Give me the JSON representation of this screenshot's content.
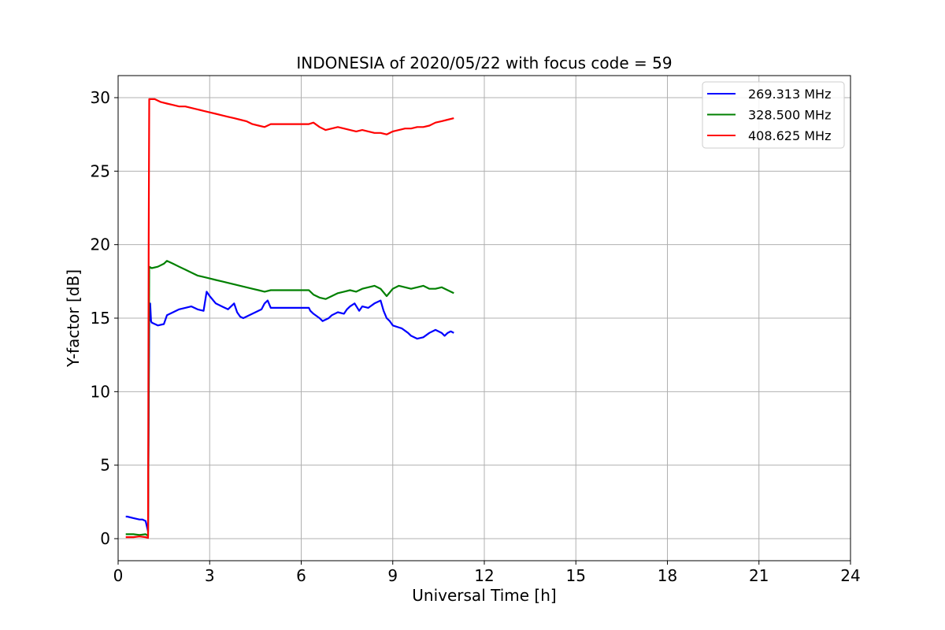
{
  "chart_data": {
    "type": "line",
    "title": "INDONESIA of 2020/05/22 with focus code = 59",
    "xlabel": "Universal Time [h]",
    "ylabel": "Y-factor [dB]",
    "xlim": [
      0,
      24
    ],
    "ylim": [
      -1.5,
      31.5
    ],
    "xticks": [
      0,
      3,
      6,
      9,
      12,
      15,
      18,
      21,
      24
    ],
    "yticks": [
      0,
      5,
      10,
      15,
      20,
      25,
      30
    ],
    "grid": true,
    "legend_position": "top-right",
    "series": [
      {
        "name": "269.313 MHz",
        "color": "#0000ff",
        "x": [
          0.25,
          0.3,
          0.5,
          0.7,
          0.8,
          0.9,
          0.98,
          1.0,
          1.02,
          1.05,
          1.08,
          1.1,
          1.3,
          1.5,
          1.6,
          1.8,
          2.0,
          2.2,
          2.4,
          2.6,
          2.8,
          2.9,
          3.0,
          3.2,
          3.4,
          3.6,
          3.8,
          3.9,
          4.0,
          4.1,
          4.3,
          4.5,
          4.7,
          4.8,
          4.9,
          5.0,
          6.25,
          6.3,
          6.4,
          6.6,
          6.7,
          6.9,
          7.0,
          7.2,
          7.4,
          7.5,
          7.6,
          7.75,
          7.9,
          8.0,
          8.2,
          8.4,
          8.6,
          8.7,
          8.8,
          8.9,
          9.0,
          9.3,
          9.5,
          9.6,
          9.8,
          10.0,
          10.2,
          10.4,
          10.6,
          10.7,
          10.8,
          10.9,
          11.0
        ],
        "y": [
          1.5,
          1.5,
          1.4,
          1.3,
          1.3,
          1.2,
          0.5,
          8.5,
          14.8,
          16.0,
          14.8,
          14.7,
          14.5,
          14.6,
          15.2,
          15.4,
          15.6,
          15.7,
          15.8,
          15.6,
          15.5,
          16.8,
          16.5,
          16.0,
          15.8,
          15.6,
          16.0,
          15.4,
          15.1,
          15.0,
          15.2,
          15.4,
          15.6,
          16.0,
          16.2,
          15.7,
          15.7,
          15.5,
          15.3,
          15.0,
          14.8,
          15.0,
          15.2,
          15.4,
          15.3,
          15.6,
          15.8,
          16.0,
          15.5,
          15.8,
          15.7,
          16.0,
          16.2,
          15.5,
          15.0,
          14.8,
          14.5,
          14.3,
          14.0,
          13.8,
          13.6,
          13.7,
          14.0,
          14.2,
          14.0,
          13.8,
          14.0,
          14.1,
          14.0
        ]
      },
      {
        "name": "328.500 MHz",
        "color": "#008000",
        "x": [
          0.25,
          0.5,
          0.7,
          0.9,
          0.98,
          1.0,
          1.02,
          1.1,
          1.3,
          1.5,
          1.6,
          1.8,
          2.0,
          2.2,
          2.4,
          2.6,
          2.8,
          3.0,
          3.2,
          3.4,
          3.6,
          3.8,
          4.0,
          4.2,
          4.4,
          4.6,
          4.8,
          5.0,
          6.25,
          6.4,
          6.6,
          6.8,
          7.0,
          7.2,
          7.4,
          7.6,
          7.8,
          8.0,
          8.2,
          8.4,
          8.6,
          8.8,
          9.0,
          9.2,
          9.4,
          9.6,
          9.8,
          10.0,
          10.2,
          10.4,
          10.6,
          10.8,
          11.0
        ],
        "y": [
          0.3,
          0.3,
          0.25,
          0.3,
          0.2,
          10.0,
          18.5,
          18.4,
          18.5,
          18.7,
          18.9,
          18.7,
          18.5,
          18.3,
          18.1,
          17.9,
          17.8,
          17.7,
          17.6,
          17.5,
          17.4,
          17.3,
          17.2,
          17.1,
          17.0,
          16.9,
          16.8,
          16.9,
          16.9,
          16.6,
          16.4,
          16.3,
          16.5,
          16.7,
          16.8,
          16.9,
          16.8,
          17.0,
          17.1,
          17.2,
          17.0,
          16.5,
          17.0,
          17.2,
          17.1,
          17.0,
          17.1,
          17.2,
          17.0,
          17.0,
          17.1,
          16.9,
          16.7
        ]
      },
      {
        "name": "408.625 MHz",
        "color": "#ff0000",
        "x": [
          0.25,
          0.5,
          0.7,
          0.9,
          0.98,
          1.0,
          1.02,
          1.2,
          1.4,
          1.6,
          1.8,
          2.0,
          2.2,
          2.4,
          2.6,
          2.8,
          3.0,
          3.2,
          3.4,
          3.6,
          3.8,
          4.0,
          4.2,
          4.4,
          4.6,
          4.8,
          5.0,
          6.25,
          6.4,
          6.6,
          6.8,
          7.0,
          7.2,
          7.4,
          7.6,
          7.8,
          8.0,
          8.2,
          8.4,
          8.6,
          8.8,
          9.0,
          9.2,
          9.4,
          9.6,
          9.8,
          10.0,
          10.2,
          10.4,
          10.6,
          10.8,
          11.0
        ],
        "y": [
          0.1,
          0.1,
          0.15,
          0.1,
          0.05,
          20.0,
          29.9,
          29.9,
          29.7,
          29.6,
          29.5,
          29.4,
          29.4,
          29.3,
          29.2,
          29.1,
          29.0,
          28.9,
          28.8,
          28.7,
          28.6,
          28.5,
          28.4,
          28.2,
          28.1,
          28.0,
          28.2,
          28.2,
          28.3,
          28.0,
          27.8,
          27.9,
          28.0,
          27.9,
          27.8,
          27.7,
          27.8,
          27.7,
          27.6,
          27.6,
          27.5,
          27.7,
          27.8,
          27.9,
          27.9,
          28.0,
          28.0,
          28.1,
          28.3,
          28.4,
          28.5,
          28.6
        ]
      }
    ]
  }
}
